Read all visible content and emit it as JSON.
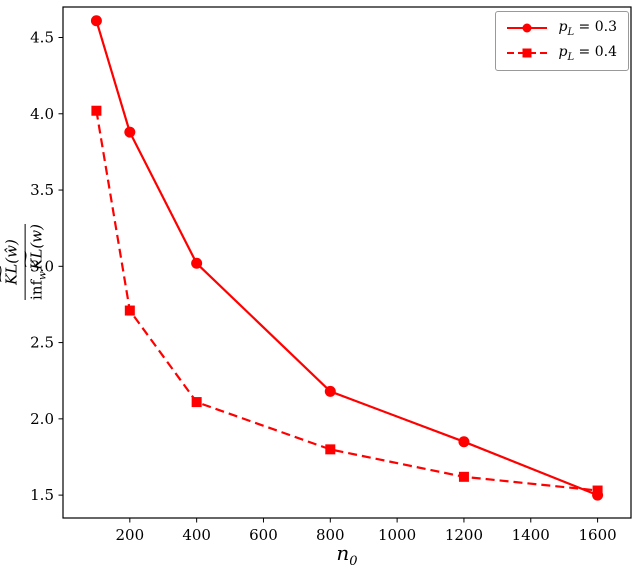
{
  "figure": {
    "background": "#ffffff",
    "frame_color": "#000000"
  },
  "chart_data": {
    "type": "line",
    "x": [
      100,
      200,
      400,
      800,
      1200,
      1600
    ],
    "series": [
      {
        "name": "p_L = 0.3",
        "label_base": "p",
        "label_sub": "L",
        "label_eq": " = 0.3",
        "linestyle": "solid",
        "marker": "circle",
        "color": "#ff0000",
        "values": [
          4.61,
          3.88,
          3.02,
          2.18,
          1.85,
          1.5
        ]
      },
      {
        "name": "p_L = 0.4",
        "label_base": "p",
        "label_sub": "L",
        "label_eq": " = 0.4",
        "linestyle": "dashed",
        "marker": "square",
        "color": "#ff0000",
        "values": [
          4.02,
          2.71,
          2.11,
          1.8,
          1.62,
          1.53
        ]
      }
    ],
    "xlabel": {
      "base": "n",
      "sub": "0"
    },
    "ylabel": {
      "numerator": {
        "tilde": "~",
        "kl": "KL",
        "rest": "(ŵ)"
      },
      "denominator": {
        "inf": "inf",
        "sub": "w",
        "tilde": "~",
        "kl": "KL",
        "rest": "(w)"
      }
    },
    "xticks": {
      "values": [
        200,
        400,
        600,
        800,
        1000,
        1200,
        1400,
        1600
      ],
      "labels": [
        "200",
        "400",
        "600",
        "800",
        "1000",
        "1200",
        "1400",
        "1600"
      ]
    },
    "yticks": {
      "values": [
        1.5,
        2.0,
        2.5,
        3.0,
        3.5,
        4.0,
        4.5
      ],
      "labels": [
        "1.5",
        "2.0",
        "2.5",
        "3.0",
        "3.5",
        "4.0",
        "4.5"
      ]
    },
    "xlim": [
      0,
      1700
    ],
    "ylim": [
      1.35,
      4.7
    ],
    "legend_position": "upper right",
    "grid": false
  }
}
